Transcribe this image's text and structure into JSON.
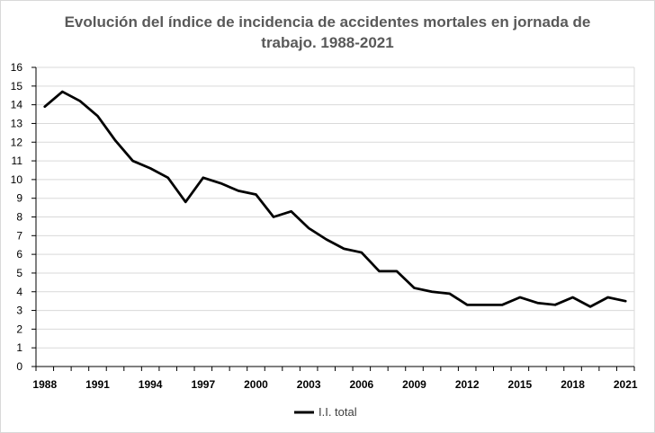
{
  "chart_data": {
    "type": "line",
    "title_lines": [
      "Evolución del índice de incidencia de accidentes mortales en jornada de",
      "trabajo. 1988-2021"
    ],
    "xlabel": "",
    "ylabel": "",
    "x": [
      1988,
      1989,
      1990,
      1991,
      1992,
      1993,
      1994,
      1995,
      1996,
      1997,
      1998,
      1999,
      2000,
      2001,
      2002,
      2003,
      2004,
      2005,
      2006,
      2007,
      2008,
      2009,
      2010,
      2011,
      2012,
      2013,
      2014,
      2015,
      2016,
      2017,
      2018,
      2019,
      2020,
      2021
    ],
    "series": [
      {
        "name": "I.I. total",
        "color": "#000000",
        "values": [
          13.9,
          14.7,
          14.2,
          13.4,
          12.1,
          11.0,
          10.6,
          10.1,
          8.8,
          10.1,
          9.8,
          9.4,
          9.2,
          8.0,
          8.3,
          7.4,
          6.8,
          6.3,
          6.1,
          5.1,
          5.1,
          4.2,
          4.0,
          3.9,
          3.3,
          3.3,
          3.3,
          3.7,
          3.4,
          3.3,
          3.7,
          3.2,
          3.7,
          3.5
        ]
      }
    ],
    "x_ticks": [
      "1988",
      "1991",
      "1994",
      "1997",
      "2000",
      "2003",
      "2006",
      "2009",
      "2012",
      "2015",
      "2018",
      "2021"
    ],
    "y_ticks": [
      "0",
      "1",
      "2",
      "3",
      "4",
      "5",
      "6",
      "7",
      "8",
      "9",
      "10",
      "11",
      "12",
      "13",
      "14",
      "15",
      "16"
    ],
    "ylim": [
      0,
      16
    ],
    "xlim": [
      1988,
      2021
    ],
    "grid": "horizontal",
    "legend_position": "bottom"
  },
  "colors": {
    "title": "#595959",
    "gridline": "#d9d9d9",
    "axis": "#000000",
    "line": "#000000",
    "legend_text": "#404040"
  }
}
